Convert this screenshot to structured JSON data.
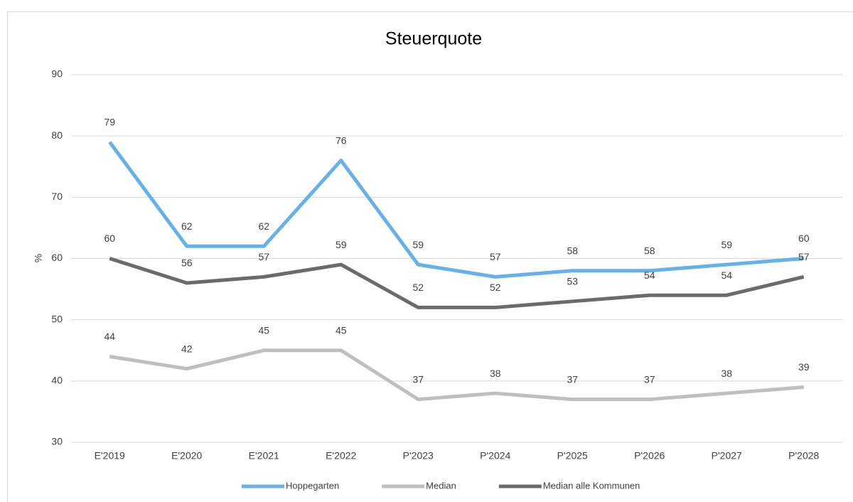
{
  "chart_data": {
    "type": "line",
    "title": "Steuerquote",
    "y_label": "%",
    "categories": [
      "E'2019",
      "E'2020",
      "E'2021",
      "E'2022",
      "P'2023",
      "P'2024",
      "P'2025",
      "P'2026",
      "P'2027",
      "P'2028"
    ],
    "series": [
      {
        "name": "Hoppegarten",
        "color": "#65b1ea",
        "values": [
          79,
          62,
          62,
          76,
          59,
          57,
          58,
          58,
          59,
          60
        ]
      },
      {
        "name": "Median",
        "color": "#bfbfbf",
        "values": [
          44,
          42,
          45,
          45,
          37,
          38,
          37,
          37,
          38,
          39
        ]
      },
      {
        "name": "Median alle Kommunen",
        "color": "#6b6b6b",
        "values": [
          60,
          56,
          57,
          59,
          52,
          52,
          53,
          54,
          54,
          57
        ]
      }
    ],
    "ylim": [
      30,
      90
    ],
    "yticks": [
      30,
      40,
      50,
      60,
      70,
      80,
      90
    ],
    "grid": true,
    "legend": "bottom"
  }
}
